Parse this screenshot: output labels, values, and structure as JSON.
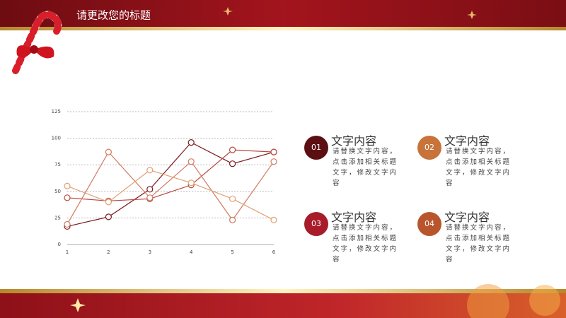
{
  "header": {
    "title": "请更改您的标题"
  },
  "chart_data": {
    "type": "line",
    "x": [
      1,
      2,
      3,
      4,
      5,
      6
    ],
    "series": [
      {
        "color": "#7b1a1f",
        "values": [
          17,
          26,
          52,
          96,
          76,
          87
        ]
      },
      {
        "color": "#b5493d",
        "values": [
          44,
          41,
          43,
          56,
          89,
          87
        ]
      },
      {
        "color": "#d27a62",
        "values": [
          19,
          87,
          44,
          78,
          23,
          78
        ]
      },
      {
        "color": "#e0a072",
        "values": [
          55,
          40,
          70,
          58,
          43,
          23
        ]
      }
    ],
    "xlim": [
      1,
      6
    ],
    "xticks": [
      1,
      2,
      3,
      4,
      5,
      6
    ],
    "ylim": [
      0,
      125
    ],
    "yticks": [
      0,
      25,
      50,
      75,
      100,
      125
    ],
    "grid": true
  },
  "items": [
    {
      "number": "01",
      "title": "文字内容",
      "text": "请替换文字内容，点击添加相关标题文字，修改文字内容",
      "color": "#5c0f13"
    },
    {
      "number": "02",
      "title": "文字内容",
      "text": "请替换文字内容，点击添加相关标题文字，修改文字内容",
      "color": "#c8733a"
    },
    {
      "number": "03",
      "title": "文字内容",
      "text": "请替换文字内容，点击添加相关标题文字，修改文字内容",
      "color": "#a81c2a"
    },
    {
      "number": "04",
      "title": "文字内容",
      "text": "请替换文字内容，点击添加相关标题文字，修改文字内容",
      "color": "#b9552c"
    }
  ]
}
